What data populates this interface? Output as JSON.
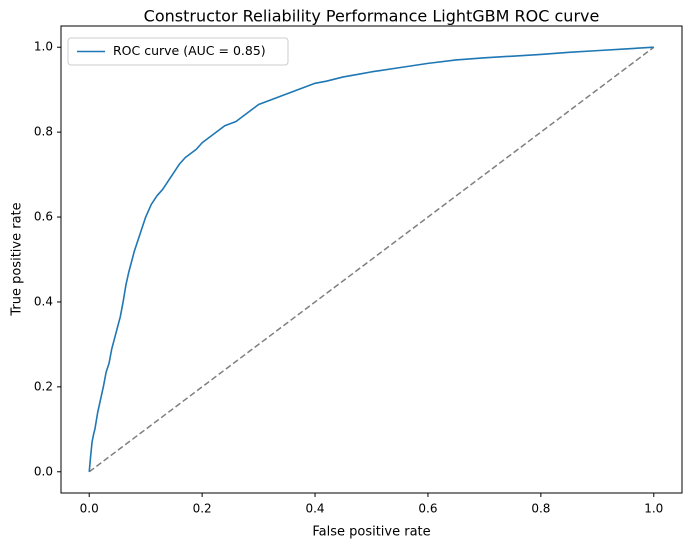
{
  "chart_data": {
    "type": "line",
    "title": "Constructor Reliability Performance LightGBM ROC curve",
    "xlabel": "False positive rate",
    "ylabel": "True positive rate",
    "xlim": [
      -0.05,
      1.05
    ],
    "ylim": [
      -0.05,
      1.05
    ],
    "xticks": [
      0.0,
      0.2,
      0.4,
      0.6,
      0.8,
      1.0
    ],
    "xtick_labels": [
      "0.0",
      "0.2",
      "0.4",
      "0.6",
      "0.8",
      "1.0"
    ],
    "yticks": [
      0.0,
      0.2,
      0.4,
      0.6,
      0.8,
      1.0
    ],
    "ytick_labels": [
      "0.0",
      "0.2",
      "0.4",
      "0.6",
      "0.8",
      "1.0"
    ],
    "grid": false,
    "legend": {
      "position": "upper-left",
      "entries": [
        "ROC curve (AUC = 0.85)"
      ]
    },
    "series": [
      {
        "name": "ROC curve (AUC = 0.85)",
        "color": "#1f77b4",
        "style": "solid",
        "x": [
          0.0,
          0.002,
          0.005,
          0.008,
          0.01,
          0.015,
          0.02,
          0.025,
          0.03,
          0.035,
          0.04,
          0.045,
          0.05,
          0.055,
          0.06,
          0.065,
          0.07,
          0.075,
          0.08,
          0.085,
          0.09,
          0.1,
          0.11,
          0.12,
          0.13,
          0.14,
          0.15,
          0.16,
          0.17,
          0.18,
          0.19,
          0.2,
          0.21,
          0.22,
          0.23,
          0.24,
          0.25,
          0.26,
          0.27,
          0.28,
          0.29,
          0.3,
          0.32,
          0.34,
          0.36,
          0.38,
          0.4,
          0.42,
          0.45,
          0.48,
          0.5,
          0.55,
          0.6,
          0.65,
          0.7,
          0.75,
          0.8,
          0.85,
          0.9,
          0.95,
          1.0
        ],
        "y": [
          0.0,
          0.03,
          0.07,
          0.09,
          0.1,
          0.14,
          0.17,
          0.2,
          0.235,
          0.255,
          0.29,
          0.315,
          0.34,
          0.365,
          0.4,
          0.44,
          0.47,
          0.495,
          0.52,
          0.54,
          0.56,
          0.6,
          0.63,
          0.65,
          0.665,
          0.685,
          0.705,
          0.725,
          0.74,
          0.75,
          0.76,
          0.775,
          0.785,
          0.795,
          0.805,
          0.815,
          0.82,
          0.825,
          0.835,
          0.845,
          0.855,
          0.865,
          0.875,
          0.885,
          0.895,
          0.905,
          0.915,
          0.92,
          0.93,
          0.937,
          0.942,
          0.952,
          0.962,
          0.97,
          0.975,
          0.979,
          0.983,
          0.988,
          0.992,
          0.996,
          1.0
        ]
      },
      {
        "color": "#7f7f7f",
        "style": "dashed",
        "x": [
          0.0,
          1.0
        ],
        "y": [
          0.0,
          1.0
        ]
      }
    ]
  }
}
